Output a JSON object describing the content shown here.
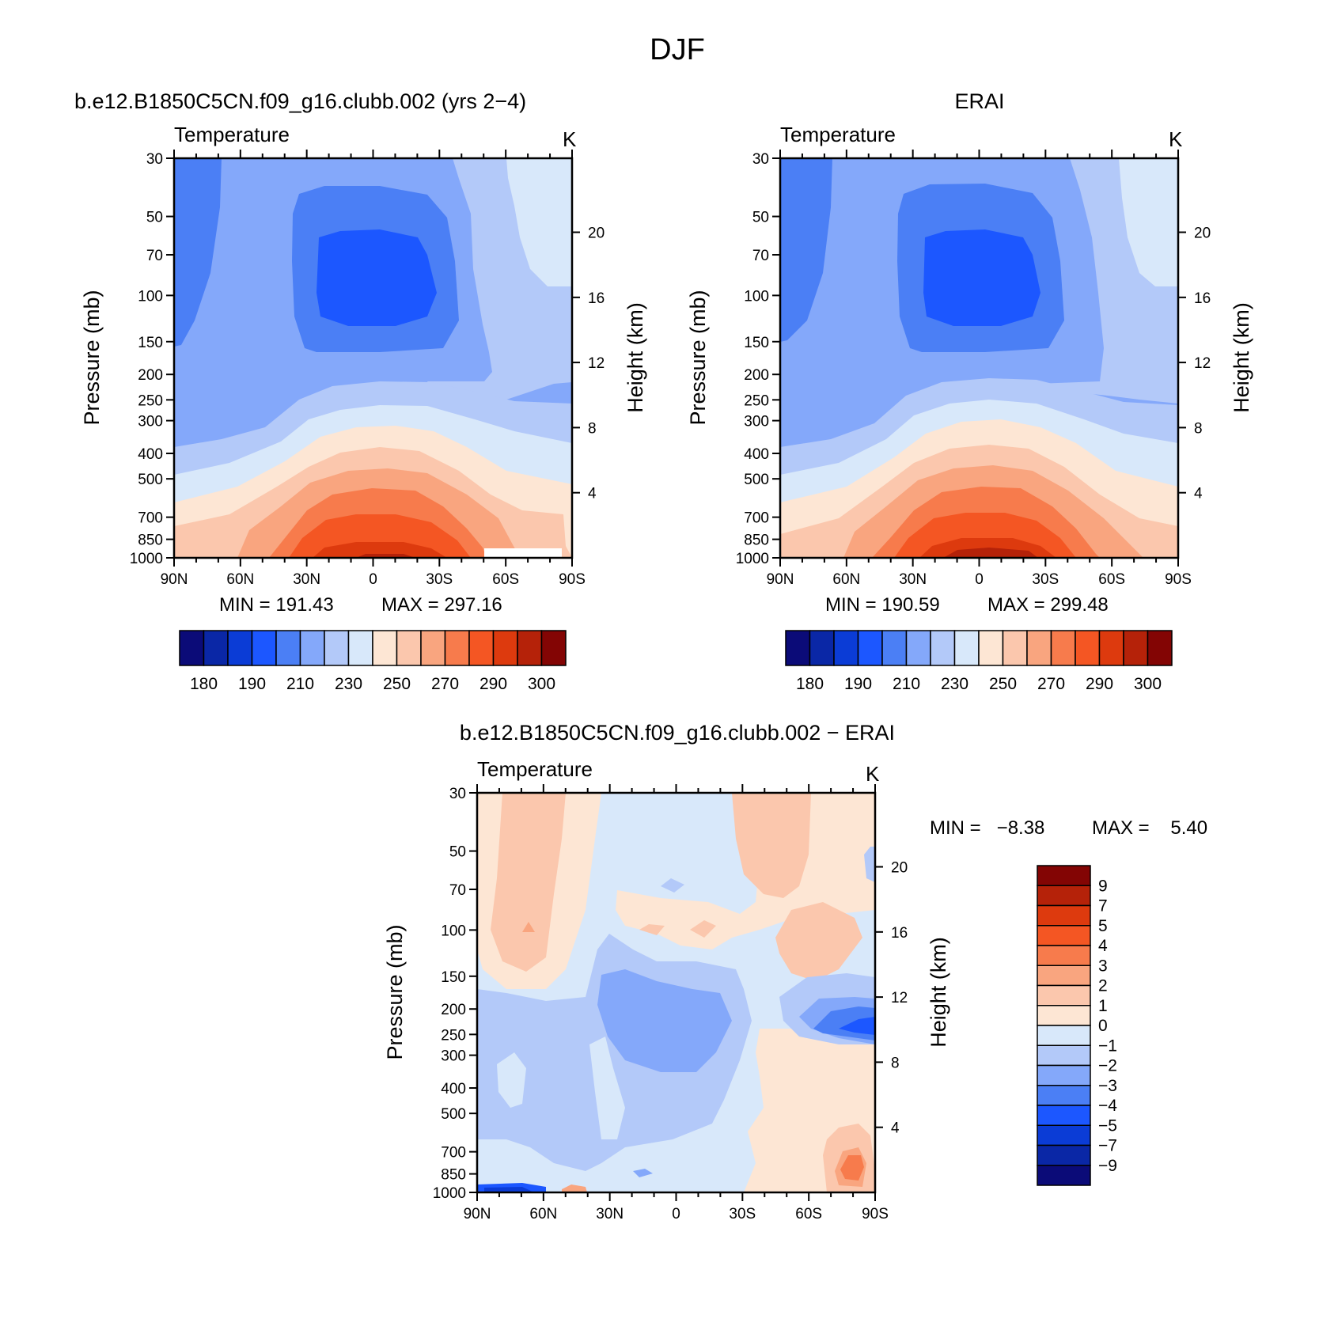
{
  "figure": {
    "season": "DJF"
  },
  "panels": [
    {
      "id": "model",
      "title": "b.e12.B1850C5CN.f09_g16.clubb.002 (yrs 2−4)",
      "variable": "Temperature",
      "units": "K",
      "ylabel_left": "Pressure (mb)",
      "ylabel_right": "Height (km)",
      "min_text": "MIN = 191.43",
      "max_text": "MAX = 297.16"
    },
    {
      "id": "obs",
      "title": "ERAI",
      "variable": "Temperature",
      "units": "K",
      "ylabel_left": "Pressure (mb)",
      "ylabel_right": "Height (km)",
      "min_text": "MIN = 190.59",
      "max_text": "MAX = 299.48"
    },
    {
      "id": "diff",
      "title": "b.e12.B1850C5CN.f09_g16.clubb.002 − ERAI",
      "variable": "Temperature",
      "units": "K",
      "ylabel_left": "Pressure (mb)",
      "ylabel_right": "Height (km)",
      "min_text": "MIN =   −8.38",
      "max_text": "MAX =    5.40"
    }
  ],
  "axes": {
    "pressure_ticks": [
      30,
      50,
      70,
      100,
      150,
      200,
      250,
      300,
      400,
      500,
      700,
      850,
      1000
    ],
    "height_ticks": [
      4,
      8,
      12,
      16,
      20
    ],
    "lat_ticks": [
      "90N",
      "60N",
      "30N",
      "0",
      "30S",
      "60S",
      "90S"
    ]
  },
  "colorbars": {
    "temperature": {
      "colors": [
        "#0b0b78",
        "#0a27a6",
        "#0b3cd6",
        "#1c57ff",
        "#4b7ff5",
        "#84a8fa",
        "#b3c9f9",
        "#d8e8fa",
        "#fde6d4",
        "#fbc7ad",
        "#f9a57f",
        "#f77b4c",
        "#f45623",
        "#dd3a0e",
        "#b52209",
        "#830504"
      ],
      "labels": [
        "180",
        "190",
        "210",
        "230",
        "250",
        "270",
        "290",
        "300"
      ]
    },
    "difference": {
      "colors": [
        "#830504",
        "#b52209",
        "#dd3a0e",
        "#f45623",
        "#f77b4c",
        "#f9a57f",
        "#fbc7ad",
        "#fde6d4",
        "#d8e8fa",
        "#b3c9f9",
        "#84a8fa",
        "#4b7ff5",
        "#1c57ff",
        "#0b3cd6",
        "#0a27a6",
        "#0b0b78"
      ],
      "labels": [
        "9",
        "7",
        "5",
        "4",
        "3",
        "2",
        "1",
        "0",
        "−1",
        "−2",
        "−3",
        "−4",
        "−5",
        "−7",
        "−9"
      ]
    }
  },
  "chart_data": [
    {
      "type": "heatmap",
      "title": "b.e12.B1850C5CN.f09_g16.clubb.002 (yrs 2−4)",
      "subtitle": "Temperature",
      "units": "K",
      "xlabel": "",
      "ylabel": "Pressure (mb)",
      "y2label": "Height (km)",
      "xlim": [
        "90N",
        "90S"
      ],
      "ylim": [
        1000,
        30
      ],
      "value_min": 191.43,
      "value_max": 297.16,
      "levels": [
        180,
        190,
        200,
        210,
        220,
        230,
        240,
        250,
        260,
        270,
        280,
        290,
        300
      ],
      "features": [
        "tropical tropopause minimum below 200 K near 100 mb",
        "maximum near 297 K at surface in tropics",
        "warm stratosphere over 60S-90S"
      ]
    },
    {
      "type": "heatmap",
      "title": "ERAI",
      "subtitle": "Temperature",
      "units": "K",
      "xlabel": "",
      "ylabel": "Pressure (mb)",
      "y2label": "Height (km)",
      "xlim": [
        "90N",
        "90S"
      ],
      "ylim": [
        1000,
        30
      ],
      "value_min": 190.59,
      "value_max": 299.48,
      "levels": [
        180,
        190,
        200,
        210,
        220,
        230,
        240,
        250,
        260,
        270,
        280,
        290,
        300
      ]
    },
    {
      "type": "heatmap",
      "title": "b.e12.B1850C5CN.f09_g16.clubb.002 − ERAI",
      "subtitle": "Temperature",
      "units": "K",
      "xlabel": "",
      "ylabel": "Pressure (mb)",
      "y2label": "Height (km)",
      "xlim": [
        "90N",
        "90S"
      ],
      "ylim": [
        1000,
        30
      ],
      "value_min": -8.38,
      "value_max": 5.4,
      "levels": [
        -9,
        -7,
        -5,
        -4,
        -3,
        -2,
        -1,
        0,
        1,
        2,
        3,
        4,
        5,
        7,
        9
      ],
      "features": [
        "cold bias up to -8 K near 200-250 mb at 70S-90S",
        "warm bias 3-4 K near 700-850 mb at 75S-90S",
        "warm bias 1-2 K in stratosphere at 60N-80N and 30S-50S"
      ]
    }
  ]
}
